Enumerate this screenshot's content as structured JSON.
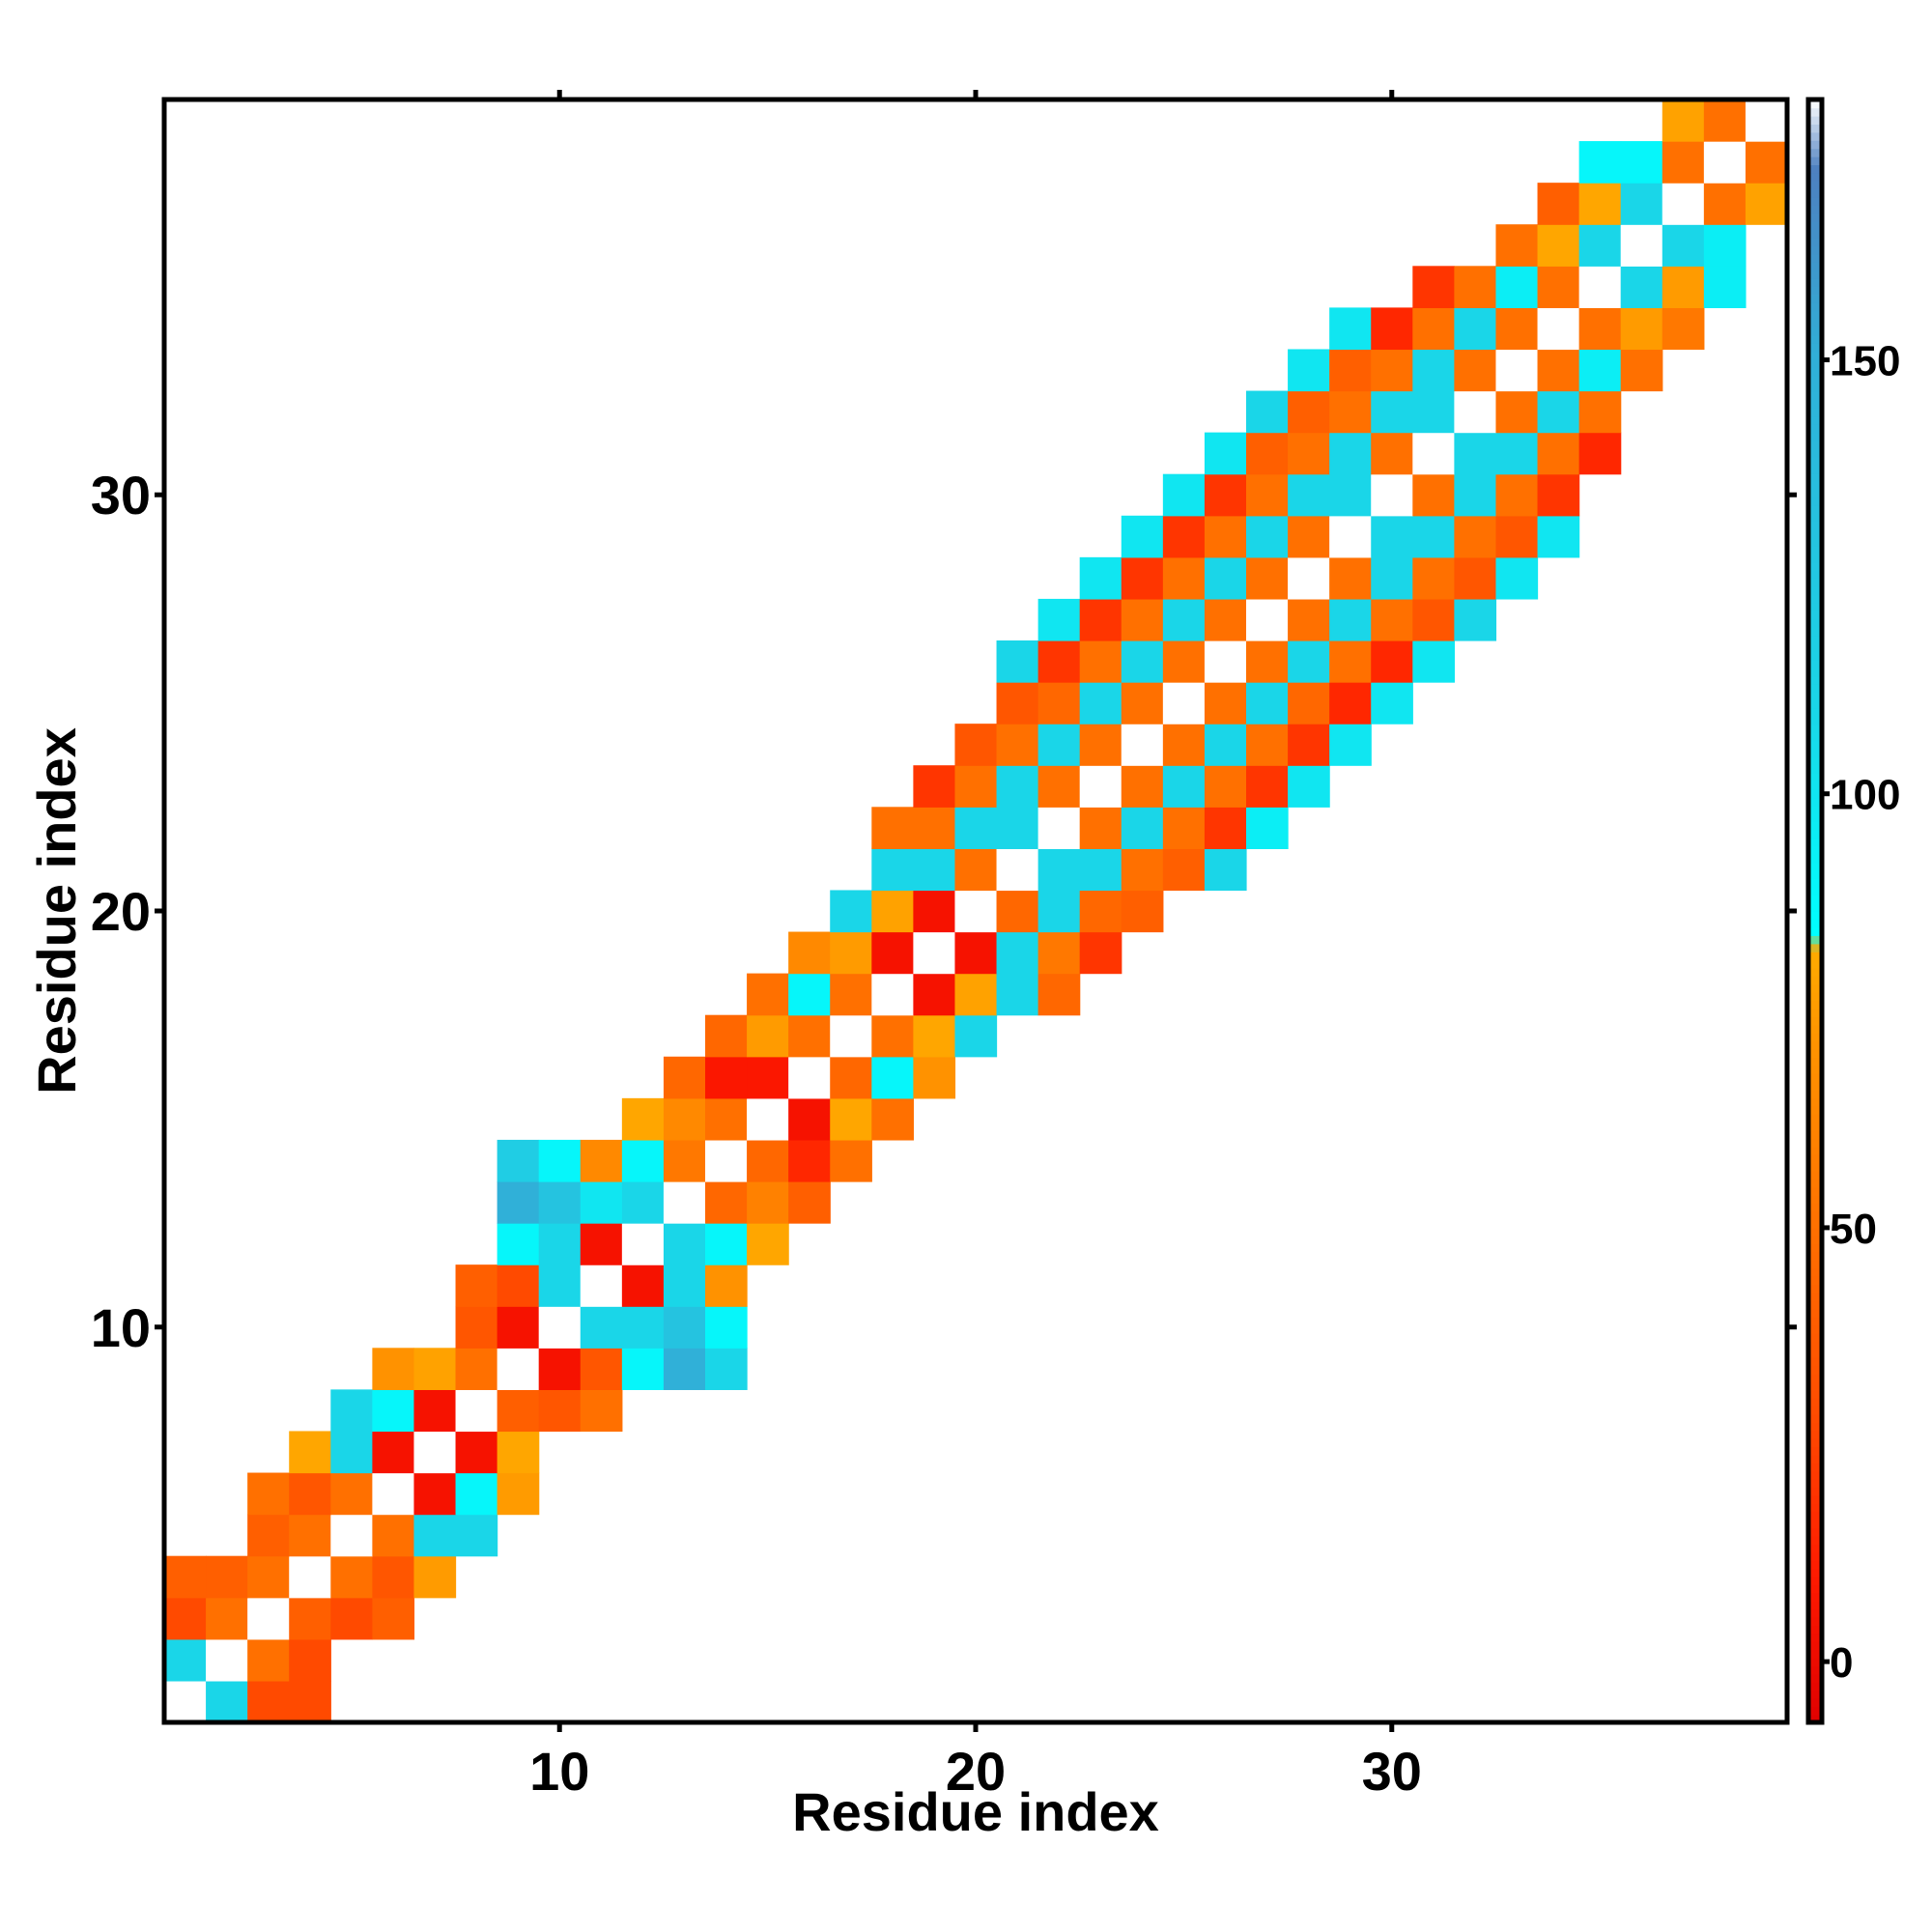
{
  "chart_data": {
    "type": "heatmap",
    "title": "",
    "xlabel": "Residue index",
    "ylabel": "Residue index",
    "xlim": [
      0.5,
      39.5
    ],
    "ylim": [
      0.5,
      39.5
    ],
    "xticks": [
      10,
      20,
      30
    ],
    "yticks": [
      10,
      20,
      30
    ],
    "grid": false,
    "colorbar": {
      "range": [
        -7,
        180
      ],
      "ticks": [
        0,
        50,
        100,
        150
      ],
      "stops": [
        {
          "value": -7,
          "color": "#e00000"
        },
        {
          "value": 10,
          "color": "#ff1a00"
        },
        {
          "value": 28,
          "color": "#ff4a00"
        },
        {
          "value": 50,
          "color": "#ff7000"
        },
        {
          "value": 72,
          "color": "#ff9500"
        },
        {
          "value": 82,
          "color": "#ffaa00"
        },
        {
          "value": 84,
          "color": "#00ffff"
        },
        {
          "value": 110,
          "color": "#1ad6e8"
        },
        {
          "value": 150,
          "color": "#30b0d8"
        },
        {
          "value": 172,
          "color": "#4d80c0"
        },
        {
          "value": 180,
          "color": "#ffffff"
        }
      ]
    },
    "diagonal_color": "#ffffff",
    "cells": [
      [
        1,
        1,
        180
      ],
      [
        2,
        1,
        110
      ],
      [
        3,
        1,
        28
      ],
      [
        4,
        1,
        28
      ],
      [
        1,
        2,
        110
      ],
      [
        2,
        2,
        180
      ],
      [
        3,
        2,
        50
      ],
      [
        4,
        2,
        28
      ],
      [
        1,
        3,
        28
      ],
      [
        2,
        3,
        50
      ],
      [
        3,
        3,
        180
      ],
      [
        4,
        3,
        40
      ],
      [
        5,
        3,
        28
      ],
      [
        6,
        3,
        40
      ],
      [
        1,
        4,
        40
      ],
      [
        2,
        4,
        40
      ],
      [
        3,
        4,
        50
      ],
      [
        4,
        4,
        180
      ],
      [
        5,
        4,
        50
      ],
      [
        6,
        4,
        35
      ],
      [
        7,
        4,
        75
      ],
      [
        3,
        5,
        40
      ],
      [
        4,
        5,
        50
      ],
      [
        5,
        5,
        180
      ],
      [
        6,
        5,
        50
      ],
      [
        7,
        5,
        110
      ],
      [
        8,
        5,
        110
      ],
      [
        3,
        6,
        50
      ],
      [
        4,
        6,
        35
      ],
      [
        5,
        6,
        50
      ],
      [
        6,
        6,
        180
      ],
      [
        7,
        6,
        5
      ],
      [
        8,
        6,
        90
      ],
      [
        9,
        6,
        75
      ],
      [
        4,
        7,
        80
      ],
      [
        5,
        7,
        110
      ],
      [
        6,
        7,
        5
      ],
      [
        7,
        7,
        180
      ],
      [
        8,
        7,
        5
      ],
      [
        9,
        7,
        80
      ],
      [
        5,
        8,
        110
      ],
      [
        6,
        8,
        90
      ],
      [
        7,
        8,
        5
      ],
      [
        8,
        8,
        180
      ],
      [
        9,
        8,
        40
      ],
      [
        10,
        8,
        35
      ],
      [
        11,
        8,
        50
      ],
      [
        6,
        9,
        70
      ],
      [
        7,
        9,
        78
      ],
      [
        8,
        9,
        50
      ],
      [
        9,
        9,
        180
      ],
      [
        10,
        9,
        5
      ],
      [
        11,
        9,
        35
      ],
      [
        12,
        9,
        90
      ],
      [
        13,
        9,
        150
      ],
      [
        14,
        9,
        110
      ],
      [
        8,
        10,
        35
      ],
      [
        9,
        10,
        5
      ],
      [
        10,
        10,
        180
      ],
      [
        11,
        10,
        110
      ],
      [
        12,
        10,
        110
      ],
      [
        13,
        10,
        130
      ],
      [
        14,
        10,
        90
      ],
      [
        8,
        11,
        40
      ],
      [
        9,
        11,
        28
      ],
      [
        10,
        11,
        110
      ],
      [
        11,
        11,
        180
      ],
      [
        12,
        11,
        5
      ],
      [
        13,
        11,
        110
      ],
      [
        14,
        11,
        70
      ],
      [
        9,
        12,
        90
      ],
      [
        10,
        12,
        110
      ],
      [
        11,
        12,
        5
      ],
      [
        12,
        12,
        180
      ],
      [
        13,
        12,
        110
      ],
      [
        14,
        12,
        90
      ],
      [
        15,
        12,
        80
      ],
      [
        9,
        13,
        150
      ],
      [
        10,
        13,
        130
      ],
      [
        11,
        13,
        100
      ],
      [
        12,
        13,
        110
      ],
      [
        13,
        13,
        180
      ],
      [
        14,
        13,
        45
      ],
      [
        15,
        13,
        60
      ],
      [
        16,
        13,
        40
      ],
      [
        9,
        14,
        120
      ],
      [
        10,
        14,
        90
      ],
      [
        11,
        14,
        65
      ],
      [
        12,
        14,
        90
      ],
      [
        13,
        14,
        55
      ],
      [
        14,
        14,
        180
      ],
      [
        15,
        14,
        45
      ],
      [
        16,
        14,
        15
      ],
      [
        17,
        14,
        50
      ],
      [
        12,
        15,
        80
      ],
      [
        13,
        15,
        65
      ],
      [
        14,
        15,
        50
      ],
      [
        15,
        15,
        180
      ],
      [
        16,
        15,
        5
      ],
      [
        17,
        15,
        80
      ],
      [
        18,
        15,
        50
      ],
      [
        13,
        16,
        45
      ],
      [
        14,
        16,
        8
      ],
      [
        15,
        16,
        8
      ],
      [
        16,
        16,
        180
      ],
      [
        17,
        16,
        45
      ],
      [
        18,
        16,
        90
      ],
      [
        19,
        16,
        70
      ],
      [
        14,
        17,
        45
      ],
      [
        15,
        17,
        75
      ],
      [
        16,
        17,
        50
      ],
      [
        17,
        17,
        180
      ],
      [
        18,
        17,
        50
      ],
      [
        19,
        17,
        80
      ],
      [
        20,
        17,
        110
      ],
      [
        15,
        18,
        50
      ],
      [
        16,
        18,
        90
      ],
      [
        17,
        18,
        50
      ],
      [
        18,
        18,
        180
      ],
      [
        19,
        18,
        5
      ],
      [
        20,
        18,
        78
      ],
      [
        21,
        18,
        110
      ],
      [
        22,
        18,
        45
      ],
      [
        16,
        19,
        65
      ],
      [
        17,
        19,
        75
      ],
      [
        18,
        19,
        5
      ],
      [
        19,
        19,
        180
      ],
      [
        20,
        19,
        5
      ],
      [
        21,
        19,
        110
      ],
      [
        22,
        19,
        55
      ],
      [
        23,
        19,
        20
      ],
      [
        17,
        20,
        110
      ],
      [
        18,
        20,
        78
      ],
      [
        19,
        20,
        5
      ],
      [
        20,
        20,
        180
      ],
      [
        21,
        20,
        45
      ],
      [
        22,
        20,
        110
      ],
      [
        23,
        20,
        45
      ],
      [
        24,
        20,
        40
      ],
      [
        18,
        21,
        110
      ],
      [
        19,
        21,
        110
      ],
      [
        20,
        21,
        50
      ],
      [
        21,
        21,
        180
      ],
      [
        22,
        21,
        110
      ],
      [
        23,
        21,
        110
      ],
      [
        24,
        21,
        50
      ],
      [
        25,
        21,
        40
      ],
      [
        26,
        21,
        110
      ],
      [
        18,
        22,
        50
      ],
      [
        19,
        22,
        50
      ],
      [
        20,
        22,
        110
      ],
      [
        21,
        22,
        110
      ],
      [
        22,
        22,
        180
      ],
      [
        23,
        22,
        50
      ],
      [
        24,
        22,
        110
      ],
      [
        25,
        22,
        50
      ],
      [
        26,
        22,
        20
      ],
      [
        27,
        22,
        95
      ],
      [
        19,
        23,
        20
      ],
      [
        20,
        23,
        50
      ],
      [
        21,
        23,
        110
      ],
      [
        22,
        23,
        50
      ],
      [
        23,
        23,
        180
      ],
      [
        24,
        23,
        50
      ],
      [
        25,
        23,
        110
      ],
      [
        26,
        23,
        50
      ],
      [
        27,
        23,
        20
      ],
      [
        28,
        23,
        100
      ],
      [
        20,
        24,
        35
      ],
      [
        21,
        24,
        50
      ],
      [
        22,
        24,
        110
      ],
      [
        23,
        24,
        50
      ],
      [
        24,
        24,
        180
      ],
      [
        25,
        24,
        50
      ],
      [
        26,
        24,
        110
      ],
      [
        27,
        24,
        50
      ],
      [
        28,
        24,
        20
      ],
      [
        29,
        24,
        100
      ],
      [
        21,
        25,
        35
      ],
      [
        22,
        25,
        45
      ],
      [
        23,
        25,
        110
      ],
      [
        24,
        25,
        50
      ],
      [
        25,
        25,
        180
      ],
      [
        26,
        25,
        50
      ],
      [
        27,
        25,
        110
      ],
      [
        28,
        25,
        45
      ],
      [
        29,
        25,
        15
      ],
      [
        30,
        25,
        100
      ],
      [
        21,
        26,
        110
      ],
      [
        22,
        26,
        20
      ],
      [
        23,
        26,
        50
      ],
      [
        24,
        26,
        110
      ],
      [
        25,
        26,
        50
      ],
      [
        26,
        26,
        180
      ],
      [
        27,
        26,
        50
      ],
      [
        28,
        26,
        110
      ],
      [
        29,
        26,
        50
      ],
      [
        30,
        26,
        15
      ],
      [
        31,
        26,
        100
      ],
      [
        22,
        27,
        100
      ],
      [
        23,
        27,
        20
      ],
      [
        24,
        27,
        50
      ],
      [
        25,
        27,
        110
      ],
      [
        26,
        27,
        50
      ],
      [
        27,
        27,
        180
      ],
      [
        28,
        27,
        50
      ],
      [
        29,
        27,
        110
      ],
      [
        30,
        27,
        50
      ],
      [
        31,
        27,
        35
      ],
      [
        32,
        27,
        110
      ],
      [
        23,
        28,
        100
      ],
      [
        24,
        28,
        20
      ],
      [
        25,
        28,
        50
      ],
      [
        26,
        28,
        110
      ],
      [
        27,
        28,
        50
      ],
      [
        28,
        28,
        180
      ],
      [
        29,
        28,
        50
      ],
      [
        30,
        28,
        110
      ],
      [
        31,
        28,
        50
      ],
      [
        32,
        28,
        35
      ],
      [
        33,
        28,
        100
      ],
      [
        24,
        29,
        100
      ],
      [
        25,
        29,
        20
      ],
      [
        26,
        29,
        50
      ],
      [
        27,
        29,
        110
      ],
      [
        28,
        29,
        50
      ],
      [
        29,
        29,
        180
      ],
      [
        30,
        29,
        110
      ],
      [
        31,
        29,
        110
      ],
      [
        32,
        29,
        50
      ],
      [
        33,
        29,
        35
      ],
      [
        34,
        29,
        100
      ],
      [
        25,
        30,
        100
      ],
      [
        26,
        30,
        20
      ],
      [
        27,
        30,
        50
      ],
      [
        28,
        30,
        110
      ],
      [
        29,
        30,
        110
      ],
      [
        30,
        30,
        180
      ],
      [
        31,
        30,
        50
      ],
      [
        32,
        30,
        110
      ],
      [
        33,
        30,
        50
      ],
      [
        34,
        30,
        20
      ],
      [
        26,
        31,
        100
      ],
      [
        27,
        31,
        40
      ],
      [
        28,
        31,
        50
      ],
      [
        29,
        31,
        110
      ],
      [
        30,
        31,
        50
      ],
      [
        31,
        31,
        180
      ],
      [
        32,
        31,
        110
      ],
      [
        33,
        31,
        110
      ],
      [
        34,
        31,
        50
      ],
      [
        35,
        31,
        15
      ],
      [
        27,
        32,
        110
      ],
      [
        28,
        32,
        40
      ],
      [
        29,
        32,
        50
      ],
      [
        30,
        32,
        110
      ],
      [
        31,
        32,
        110
      ],
      [
        32,
        32,
        180
      ],
      [
        33,
        32,
        50
      ],
      [
        34,
        32,
        110
      ],
      [
        35,
        32,
        50
      ],
      [
        28,
        33,
        100
      ],
      [
        29,
        33,
        40
      ],
      [
        30,
        33,
        50
      ],
      [
        31,
        33,
        110
      ],
      [
        32,
        33,
        50
      ],
      [
        33,
        33,
        180
      ],
      [
        34,
        33,
        50
      ],
      [
        35,
        33,
        95
      ],
      [
        36,
        33,
        50
      ],
      [
        29,
        34,
        100
      ],
      [
        30,
        34,
        15
      ],
      [
        31,
        34,
        50
      ],
      [
        32,
        34,
        110
      ],
      [
        33,
        34,
        50
      ],
      [
        34,
        34,
        180
      ],
      [
        35,
        34,
        50
      ],
      [
        36,
        34,
        75
      ],
      [
        37,
        34,
        55
      ],
      [
        31,
        35,
        20
      ],
      [
        32,
        35,
        50
      ],
      [
        33,
        35,
        95
      ],
      [
        34,
        35,
        50
      ],
      [
        35,
        35,
        180
      ],
      [
        36,
        35,
        110
      ],
      [
        37,
        35,
        75
      ],
      [
        38,
        35,
        95
      ],
      [
        33,
        36,
        50
      ],
      [
        34,
        36,
        80
      ],
      [
        35,
        36,
        110
      ],
      [
        36,
        36,
        180
      ],
      [
        37,
        36,
        110
      ],
      [
        38,
        36,
        95
      ],
      [
        34,
        37,
        40
      ],
      [
        35,
        37,
        80
      ],
      [
        36,
        37,
        110
      ],
      [
        37,
        37,
        180
      ],
      [
        38,
        37,
        50
      ],
      [
        39,
        37,
        78
      ],
      [
        35,
        38,
        90
      ],
      [
        36,
        38,
        90
      ],
      [
        37,
        38,
        50
      ],
      [
        38,
        38,
        180
      ],
      [
        39,
        38,
        50
      ],
      [
        37,
        39,
        78
      ],
      [
        38,
        39,
        50
      ],
      [
        39,
        39,
        180
      ]
    ]
  }
}
